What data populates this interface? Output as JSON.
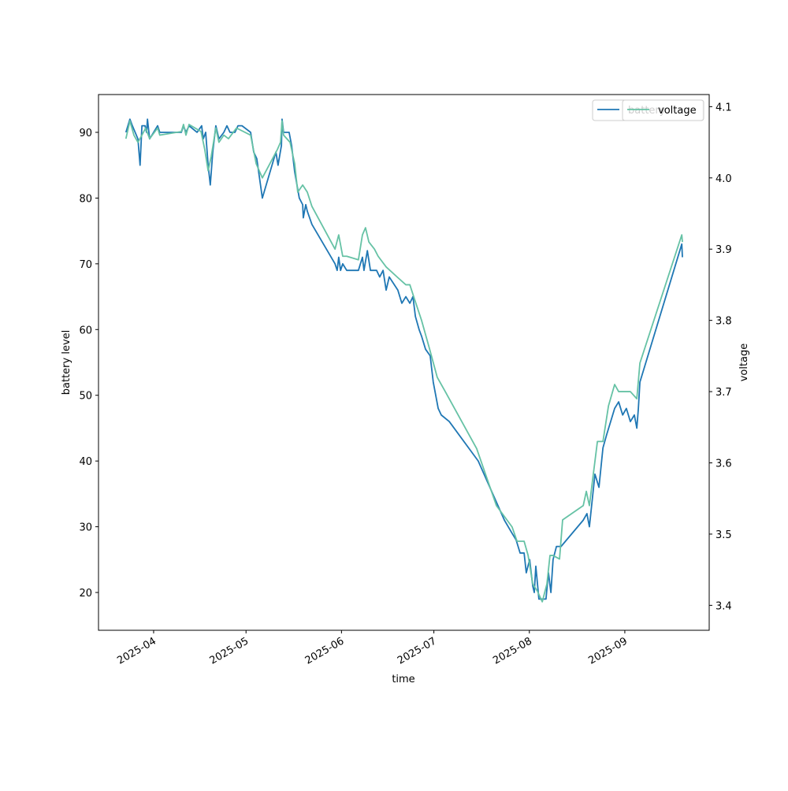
{
  "chart_data": {
    "type": "line",
    "xlabel": "time",
    "ylabel": "battery level",
    "y2label": "voltage",
    "xlim": [
      20161.1,
      20359.4
    ],
    "xticks": [
      {
        "value": 20179,
        "label": "2025-04"
      },
      {
        "value": 20209,
        "label": "2025-05"
      },
      {
        "value": 20240,
        "label": "2025-06"
      },
      {
        "value": 20270,
        "label": "2025-07"
      },
      {
        "value": 20301,
        "label": "2025-08"
      },
      {
        "value": 20332,
        "label": "2025-09"
      }
    ],
    "ylim": [
      14.25,
      95.75
    ],
    "yticks": [
      20,
      30,
      40,
      50,
      60,
      70,
      80,
      90
    ],
    "y2lim": [
      3.365,
      4.117
    ],
    "y2ticks": [
      3.4,
      3.5,
      3.6,
      3.7,
      3.8,
      3.9,
      {
        "value": 4,
        "label": "4.0"
      },
      4.1
    ],
    "grid": false,
    "legend": "upper right",
    "series": [
      {
        "name": "battery",
        "color": "#1f77b4",
        "axis": "y",
        "x": [
          20170.0,
          20171.3,
          20172.1,
          20173.9,
          20174.6,
          20175.2,
          20176.2,
          20176.7,
          20177.0,
          20177.7,
          20179,
          20180.3,
          20181.0,
          20188.0,
          20188.7,
          20189.5,
          20190.5,
          20193.1,
          20194.6,
          20195.1,
          20195.9,
          20196.7,
          20197.4,
          20198.2,
          20199.2,
          20200.2,
          20201.8,
          20202.8,
          20203.8,
          20205.4,
          20206.4,
          20207.7,
          20210.5,
          20211.5,
          20212.5,
          20214.3,
          20218.7,
          20219.4,
          20220.5,
          20220.7,
          20221.2,
          20223.0,
          20223.8,
          20224.8,
          20226.3,
          20227.4,
          20227.6,
          20228.4,
          20228.9,
          20230.4,
          20237.9,
          20238.6,
          20239.1,
          20239.7,
          20240.4,
          20241.7,
          20245.5,
          20246.8,
          20247.3,
          20248.4,
          20249.4,
          20251.4,
          20252.4,
          20253.5,
          20254.5,
          20255.5,
          20258.3,
          20259.6,
          20260.9,
          20262.2,
          20263.2,
          20264.0,
          20265.2,
          20266.0,
          20267.3,
          20268.8,
          20269.8,
          20271.4,
          20272.4,
          20275.0,
          20284.4,
          20292.9,
          20295.4,
          20296.7,
          20298.0,
          20299.3,
          20300.0,
          20301.1,
          20302.1,
          20302.6,
          20303.1,
          20304.1,
          20305.7,
          20306.4,
          20307.2,
          20308.0,
          20308.7,
          20309.8,
          20311.3,
          20318.5,
          20319.7,
          20320.5,
          20322.3,
          20323.6,
          20324.9,
          20326.1,
          20327.4,
          20328.7,
          20330.0,
          20331.3,
          20332.5,
          20333.8,
          20335.1,
          20335.9,
          20336.4,
          20336.9,
          20350.5,
          20350.7
        ],
        "values": [
          90,
          92,
          91,
          89,
          85,
          91,
          91,
          90,
          92,
          89,
          90,
          91,
          90,
          90,
          91,
          90,
          91,
          90,
          91,
          89,
          90,
          85,
          82,
          87,
          91,
          89,
          90,
          91,
          90,
          90,
          91,
          91,
          90,
          87,
          86,
          80,
          87,
          85,
          88,
          92,
          90,
          90,
          88,
          84,
          80,
          79,
          77,
          79,
          78,
          76,
          70,
          69,
          71,
          69,
          70,
          69,
          69,
          71,
          69,
          72,
          69,
          69,
          68,
          69,
          66,
          68,
          66,
          64,
          65,
          64,
          65,
          62,
          60,
          59,
          57,
          56,
          52,
          48,
          47,
          46,
          40,
          31,
          29,
          28,
          26,
          26,
          23,
          25,
          21,
          20,
          24,
          19,
          19,
          19,
          23,
          20,
          25,
          27,
          27,
          31,
          32,
          30,
          38,
          36,
          42,
          44,
          46,
          48,
          49,
          47,
          48,
          46,
          47,
          45,
          48,
          52,
          73,
          71
        ]
      },
      {
        "name": "voltage",
        "color": "#66c2a5",
        "axis": "y2",
        "x": [
          20170.0,
          20171.3,
          20172.6,
          20173.9,
          20175.2,
          20176.4,
          20177.7,
          20180.3,
          20181.0,
          20188.0,
          20188.7,
          20189.5,
          20190.5,
          20194.4,
          20195.6,
          20196.7,
          20197.7,
          20199.2,
          20200.2,
          20201.8,
          20203.3,
          20205.9,
          20210.5,
          20212.3,
          20214.3,
          20219.2,
          20220.2,
          20220.7,
          20221.2,
          20223.3,
          20224.8,
          20225.8,
          20227.4,
          20228.9,
          20230.4,
          20237.9,
          20239.1,
          20240.4,
          20241.7,
          20245.5,
          20246.8,
          20247.8,
          20248.9,
          20250.7,
          20251.9,
          20254.5,
          20258.3,
          20260.9,
          20262.2,
          20263.7,
          20266.0,
          20268.6,
          20271.1,
          20273.7,
          20283.9,
          20290.3,
          20295.4,
          20297.0,
          20299.3,
          20300.6,
          20302.1,
          20303.6,
          20305.2,
          20306.7,
          20307.7,
          20308.7,
          20310.8,
          20311.8,
          20318.5,
          20319.5,
          20320.5,
          20323.1,
          20324.9,
          20326.7,
          20328.7,
          20330.0,
          20331.3,
          20333.8,
          20335.9,
          20336.9,
          20350.5,
          20350.7
        ],
        "values": [
          4.055,
          4.08,
          4.06,
          4.05,
          4.06,
          4.07,
          4.055,
          4.07,
          4.06,
          4.065,
          4.075,
          4.06,
          4.075,
          4.065,
          4.04,
          4.01,
          4.03,
          4.07,
          4.05,
          4.06,
          4.055,
          4.07,
          4.06,
          4.02,
          4.0,
          4.04,
          4.05,
          4.08,
          4.06,
          4.05,
          4.02,
          3.98,
          3.99,
          3.98,
          3.96,
          3.9,
          3.92,
          3.89,
          3.89,
          3.885,
          3.92,
          3.93,
          3.91,
          3.9,
          3.89,
          3.875,
          3.86,
          3.85,
          3.85,
          3.83,
          3.8,
          3.76,
          3.72,
          3.7,
          3.62,
          3.54,
          3.51,
          3.49,
          3.49,
          3.47,
          3.43,
          3.42,
          3.405,
          3.43,
          3.47,
          3.47,
          3.465,
          3.52,
          3.54,
          3.56,
          3.54,
          3.63,
          3.63,
          3.68,
          3.71,
          3.7,
          3.7,
          3.7,
          3.69,
          3.74,
          3.92,
          3.91
        ]
      }
    ]
  }
}
